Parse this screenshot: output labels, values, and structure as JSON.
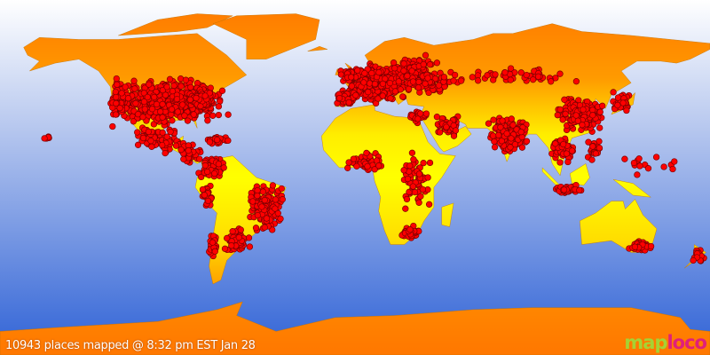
{
  "map": {
    "projection": "equirectangular",
    "colors": {
      "ocean_top": "#ffffff",
      "ocean_bottom": "#3a68d8",
      "land_polar": "#ff7700",
      "land_tropic": "#ffff00",
      "marker_fill": "#ff0000",
      "marker_stroke": "#7a0000"
    }
  },
  "caption": "10943 places mapped @ 8:32 pm EST Jan 28",
  "logo": {
    "part1": "map",
    "part2": "loco"
  }
}
